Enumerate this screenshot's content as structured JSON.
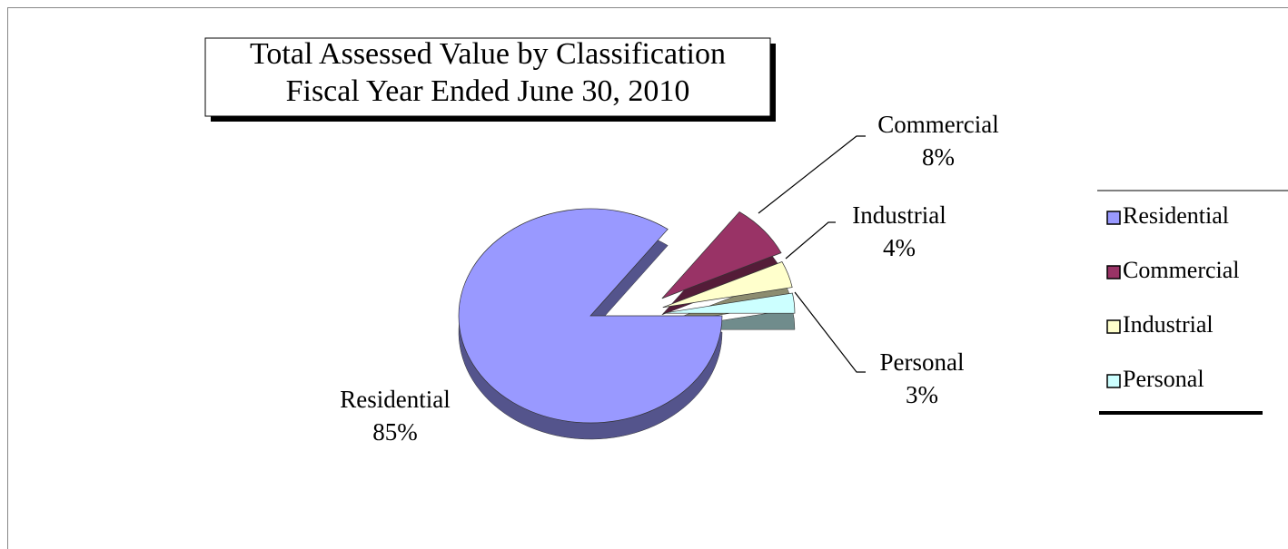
{
  "chart_data": {
    "type": "pie",
    "title": "Total  Assessed Value by Classification",
    "subtitle": "Fiscal Year Ended June 30, 2010",
    "categories": [
      "Residential",
      "Commercial",
      "Industrial",
      "Personal"
    ],
    "values": [
      85,
      8,
      4,
      3
    ],
    "value_labels": [
      "85%",
      "8%",
      "4%",
      "3%"
    ],
    "colors": [
      "#9999ff",
      "#993366",
      "#ffffcc",
      "#ccffff"
    ],
    "legend": "right"
  }
}
